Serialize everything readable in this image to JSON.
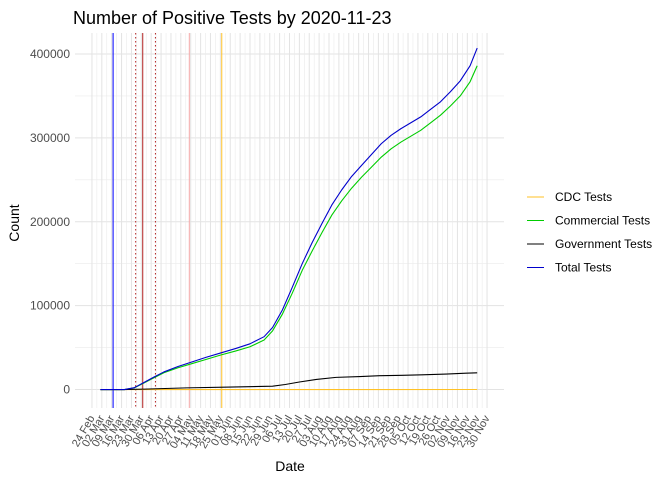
{
  "chart_data": {
    "type": "line",
    "title": "Number of Positive Tests by  2020-11-23",
    "xlabel": "Date",
    "ylabel": "Count",
    "xlim": [
      "2020-02-24",
      "2020-11-30"
    ],
    "ylim": [
      -22000,
      425000
    ],
    "grid": true,
    "legend_position": "right",
    "y_ticks": [
      {
        "value": 0,
        "label": "0"
      },
      {
        "value": 100000,
        "label": "100000"
      },
      {
        "value": 200000,
        "label": "200000"
      },
      {
        "value": 300000,
        "label": "300000"
      },
      {
        "value": 400000,
        "label": "400000"
      }
    ],
    "x_ticks": [
      {
        "date": "2020-02-24",
        "label": "24 Feb"
      },
      {
        "date": "2020-03-02",
        "label": "02 Mar"
      },
      {
        "date": "2020-03-09",
        "label": "09 Mar"
      },
      {
        "date": "2020-03-16",
        "label": "16 Mar"
      },
      {
        "date": "2020-03-23",
        "label": "23 Mar"
      },
      {
        "date": "2020-03-30",
        "label": "30 Mar"
      },
      {
        "date": "2020-04-06",
        "label": "06 Apr"
      },
      {
        "date": "2020-04-13",
        "label": "13 Apr"
      },
      {
        "date": "2020-04-20",
        "label": "20 Apr"
      },
      {
        "date": "2020-04-27",
        "label": "27 Apr"
      },
      {
        "date": "2020-05-04",
        "label": "04 May"
      },
      {
        "date": "2020-05-11",
        "label": "11 May"
      },
      {
        "date": "2020-05-18",
        "label": "18 May"
      },
      {
        "date": "2020-05-25",
        "label": "25 May"
      },
      {
        "date": "2020-06-01",
        "label": "01 Jun"
      },
      {
        "date": "2020-06-08",
        "label": "08 Jun"
      },
      {
        "date": "2020-06-15",
        "label": "15 Jun"
      },
      {
        "date": "2020-06-22",
        "label": "22 Jun"
      },
      {
        "date": "2020-06-29",
        "label": "29 Jun"
      },
      {
        "date": "2020-07-06",
        "label": "06 Jul"
      },
      {
        "date": "2020-07-13",
        "label": "13 Jul"
      },
      {
        "date": "2020-07-20",
        "label": "20 Jul"
      },
      {
        "date": "2020-07-27",
        "label": "27 Jul"
      },
      {
        "date": "2020-08-03",
        "label": "03 Aug"
      },
      {
        "date": "2020-08-10",
        "label": "10 Aug"
      },
      {
        "date": "2020-08-17",
        "label": "17 Aug"
      },
      {
        "date": "2020-08-24",
        "label": "24 Aug"
      },
      {
        "date": "2020-08-31",
        "label": "31 Aug"
      },
      {
        "date": "2020-09-07",
        "label": "07 Sep"
      },
      {
        "date": "2020-09-14",
        "label": "14 Sep"
      },
      {
        "date": "2020-09-21",
        "label": "21 Sep"
      },
      {
        "date": "2020-09-28",
        "label": "28 Sep"
      },
      {
        "date": "2020-10-05",
        "label": "05 Oct"
      },
      {
        "date": "2020-10-12",
        "label": "12 Oct"
      },
      {
        "date": "2020-10-19",
        "label": "19 Oct"
      },
      {
        "date": "2020-10-26",
        "label": "26 Oct"
      },
      {
        "date": "2020-11-02",
        "label": "02 Nov"
      },
      {
        "date": "2020-11-09",
        "label": "09 Nov"
      },
      {
        "date": "2020-11-16",
        "label": "16 Nov"
      },
      {
        "date": "2020-11-23",
        "label": "23 Nov"
      },
      {
        "date": "2020-11-30",
        "label": "30 Nov"
      }
    ],
    "reference_lines": [
      {
        "date": "2020-03-10",
        "color": "#0000ff",
        "style": "solid"
      },
      {
        "date": "2020-03-26",
        "color": "#b22222",
        "style": "dotted"
      },
      {
        "date": "2020-03-31",
        "color": "#b22222",
        "style": "solid"
      },
      {
        "date": "2020-04-09",
        "color": "#b22222",
        "style": "dotted"
      },
      {
        "date": "2020-05-03",
        "color": "#f4a8a8",
        "style": "solid"
      },
      {
        "date": "2020-05-26",
        "color": "#ffc125",
        "style": "solid"
      }
    ],
    "series": [
      {
        "name": "CDC Tests",
        "color": "#ffc125",
        "points": [
          [
            "2020-03-01",
            0
          ],
          [
            "2020-05-26",
            30
          ],
          [
            "2020-11-23",
            40
          ]
        ]
      },
      {
        "name": "Commercial Tests",
        "color": "#00cc00",
        "points": [
          [
            "2020-03-01",
            0
          ],
          [
            "2020-03-18",
            0
          ],
          [
            "2020-03-25",
            2000
          ],
          [
            "2020-04-01",
            8000
          ],
          [
            "2020-04-08",
            14000
          ],
          [
            "2020-04-15",
            20000
          ],
          [
            "2020-04-25",
            26000
          ],
          [
            "2020-05-05",
            31000
          ],
          [
            "2020-05-15",
            36000
          ],
          [
            "2020-05-25",
            41000
          ],
          [
            "2020-06-05",
            46000
          ],
          [
            "2020-06-15",
            51000
          ],
          [
            "2020-06-25",
            59000
          ],
          [
            "2020-07-01",
            70000
          ],
          [
            "2020-07-08",
            90000
          ],
          [
            "2020-07-15",
            115000
          ],
          [
            "2020-07-22",
            142000
          ],
          [
            "2020-07-29",
            165000
          ],
          [
            "2020-08-05",
            187000
          ],
          [
            "2020-08-12",
            208000
          ],
          [
            "2020-08-19",
            225000
          ],
          [
            "2020-08-26",
            240000
          ],
          [
            "2020-09-02",
            253000
          ],
          [
            "2020-09-09",
            265000
          ],
          [
            "2020-09-16",
            277000
          ],
          [
            "2020-09-23",
            287000
          ],
          [
            "2020-09-30",
            295000
          ],
          [
            "2020-10-07",
            302000
          ],
          [
            "2020-10-14",
            309000
          ],
          [
            "2020-10-21",
            318000
          ],
          [
            "2020-10-28",
            327000
          ],
          [
            "2020-11-04",
            338000
          ],
          [
            "2020-11-11",
            350000
          ],
          [
            "2020-11-18",
            367000
          ],
          [
            "2020-11-23",
            386000
          ]
        ]
      },
      {
        "name": "Government Tests",
        "color": "#000000",
        "points": [
          [
            "2020-03-01",
            0
          ],
          [
            "2020-03-18",
            0
          ],
          [
            "2020-04-01",
            500
          ],
          [
            "2020-05-01",
            2000
          ],
          [
            "2020-06-01",
            3000
          ],
          [
            "2020-07-01",
            4000
          ],
          [
            "2020-07-10",
            6000
          ],
          [
            "2020-07-20",
            9000
          ],
          [
            "2020-08-01",
            12000
          ],
          [
            "2020-08-15",
            14500
          ],
          [
            "2020-09-01",
            15500
          ],
          [
            "2020-09-15",
            16500
          ],
          [
            "2020-10-01",
            17000
          ],
          [
            "2020-10-15",
            17500
          ],
          [
            "2020-11-01",
            18500
          ],
          [
            "2020-11-15",
            19500
          ],
          [
            "2020-11-23",
            20000
          ]
        ]
      },
      {
        "name": "Total Tests",
        "color": "#0000cc",
        "points": [
          [
            "2020-03-01",
            0
          ],
          [
            "2020-03-18",
            0
          ],
          [
            "2020-03-25",
            2200
          ],
          [
            "2020-04-01",
            8500
          ],
          [
            "2020-04-08",
            15000
          ],
          [
            "2020-04-15",
            21000
          ],
          [
            "2020-04-25",
            27500
          ],
          [
            "2020-05-05",
            33000
          ],
          [
            "2020-05-15",
            38500
          ],
          [
            "2020-05-25",
            43500
          ],
          [
            "2020-06-05",
            49000
          ],
          [
            "2020-06-15",
            54500
          ],
          [
            "2020-06-25",
            63000
          ],
          [
            "2020-07-01",
            74000
          ],
          [
            "2020-07-08",
            95000
          ],
          [
            "2020-07-15",
            122000
          ],
          [
            "2020-07-22",
            150000
          ],
          [
            "2020-07-29",
            175000
          ],
          [
            "2020-08-05",
            198000
          ],
          [
            "2020-08-12",
            220000
          ],
          [
            "2020-08-19",
            238000
          ],
          [
            "2020-08-26",
            254000
          ],
          [
            "2020-09-02",
            267000
          ],
          [
            "2020-09-09",
            280000
          ],
          [
            "2020-09-16",
            293000
          ],
          [
            "2020-09-23",
            303000
          ],
          [
            "2020-09-30",
            311000
          ],
          [
            "2020-10-07",
            318000
          ],
          [
            "2020-10-14",
            325000
          ],
          [
            "2020-10-21",
            334000
          ],
          [
            "2020-10-28",
            343000
          ],
          [
            "2020-11-04",
            355000
          ],
          [
            "2020-11-11",
            368000
          ],
          [
            "2020-11-18",
            386000
          ],
          [
            "2020-11-23",
            407000
          ]
        ]
      }
    ]
  }
}
